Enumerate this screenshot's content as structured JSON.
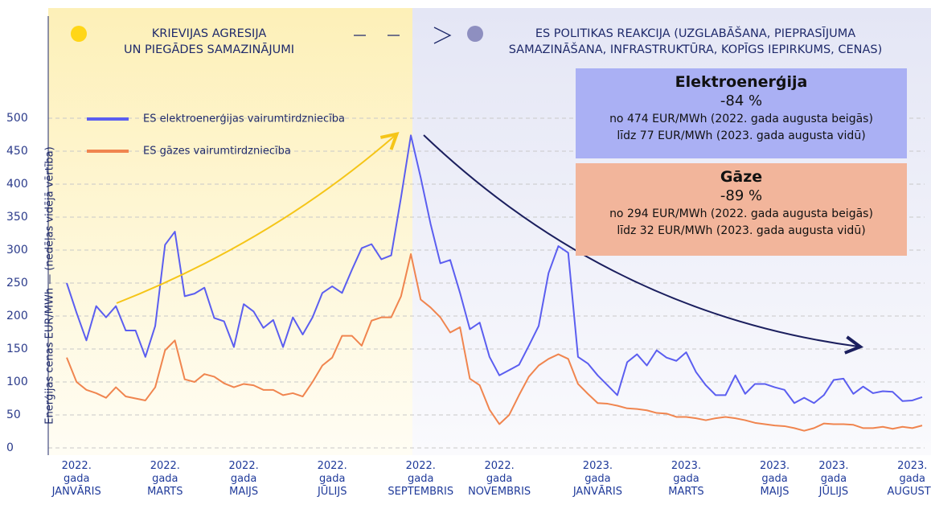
{
  "chart_data": {
    "type": "line",
    "left_heading": "KRIEVIJAS AGRESIJA\nUN PIEGĀDES SAMAZINĀJUMI",
    "right_heading": "ES POLITIKAS REAKCIJA (UZGLABĀŠANA, PIEPRASĪJUMA\nSAMAZINĀŠANA, INFRASTRUKTŪRA, KOPĪGS IEPIRKUMS, CENAS)",
    "ylabel": "Enerģijas cenas EUR/MWh — (nedēļas vidējā vērtība)",
    "callouts": [
      {
        "title": "Elektroenerģija",
        "change": "-84 %",
        "from": "no 474 EUR/MWh (2022. gada augusta beigās)",
        "to": "līdz 77 EUR/MWh (2023. gada augusta vidū)",
        "color": "#aab0f4"
      },
      {
        "title": "Gāze",
        "change": "-89 %",
        "from": "no 294 EUR/MWh (2022. gada augusta beigās)",
        "to": "līdz 32 EUR/MWh (2023. gada augusta vidū)",
        "color": "#f2b59b"
      }
    ],
    "categories": [
      null,
      "2022.\ngada\nJANVĀRIS",
      null,
      null,
      null,
      null,
      null,
      null,
      null,
      null,
      "2022.\ngada\nMARTS",
      null,
      null,
      null,
      null,
      null,
      null,
      null,
      "2022.\ngada\nMAIJS",
      null,
      null,
      null,
      null,
      null,
      null,
      null,
      null,
      "2022.\ngada\nJŪLIJS",
      null,
      null,
      null,
      null,
      null,
      null,
      null,
      null,
      "2022.\ngada\nSEPTEMBRIS",
      null,
      null,
      null,
      null,
      null,
      null,
      null,
      "2022.\ngada\nNOVEMBRIS",
      null,
      null,
      null,
      null,
      null,
      null,
      null,
      null,
      null,
      "2023.\ngada\nJANVĀRIS",
      null,
      null,
      null,
      null,
      null,
      null,
      null,
      null,
      "2023.\ngada\nMARTS",
      null,
      null,
      null,
      null,
      null,
      null,
      null,
      null,
      "2023.\ngada\nMAIJS",
      null,
      null,
      null,
      null,
      null,
      "2023.\ngada\nJŪLIJS",
      null,
      null,
      null,
      null,
      null,
      null,
      null,
      "2023.\ngada\nAUGUSTS",
      null
    ],
    "series": [
      {
        "name": "ES elektroenerģijas vairumtirdzniecība",
        "color": "#5b5ef0",
        "values": [
          250,
          205,
          163,
          215,
          198,
          215,
          178,
          178,
          138,
          185,
          308,
          328,
          230,
          234,
          243,
          197,
          192,
          153,
          218,
          207,
          182,
          194,
          153,
          198,
          172,
          198,
          235,
          245,
          235,
          270,
          303,
          309,
          286,
          292,
          380,
          474,
          410,
          340,
          280,
          285,
          235,
          180,
          190,
          138,
          110,
          118,
          126,
          155,
          185,
          265,
          306,
          296,
          138,
          128,
          110,
          95,
          80,
          130,
          142,
          125,
          148,
          137,
          132,
          145,
          115,
          95,
          80,
          80,
          110,
          82,
          97,
          97,
          92,
          88,
          68,
          76,
          68,
          80,
          103,
          105,
          82,
          93,
          83,
          86,
          85,
          71,
          72,
          77
        ]
      },
      {
        "name": "ES gāzes vairumtirdzniecība",
        "color": "#f0854f",
        "values": [
          137,
          100,
          88,
          83,
          76,
          92,
          78,
          75,
          72,
          92,
          148,
          163,
          104,
          100,
          112,
          108,
          98,
          92,
          97,
          95,
          88,
          88,
          80,
          83,
          78,
          100,
          125,
          137,
          170,
          170,
          155,
          193,
          198,
          198,
          230,
          294,
          225,
          213,
          198,
          175,
          183,
          105,
          95,
          58,
          36,
          50,
          80,
          108,
          125,
          135,
          142,
          135,
          97,
          82,
          68,
          67,
          64,
          60,
          59,
          57,
          53,
          52,
          47,
          47,
          45,
          42,
          45,
          47,
          45,
          42,
          38,
          36,
          34,
          33,
          30,
          26,
          30,
          37,
          36,
          36,
          35,
          30,
          30,
          32,
          29,
          32,
          30,
          34
        ]
      }
    ],
    "ylim": [
      0,
      500
    ],
    "yticks": [
      0,
      50,
      100,
      150,
      200,
      250,
      300,
      350,
      400,
      450,
      500
    ],
    "grid": true
  }
}
